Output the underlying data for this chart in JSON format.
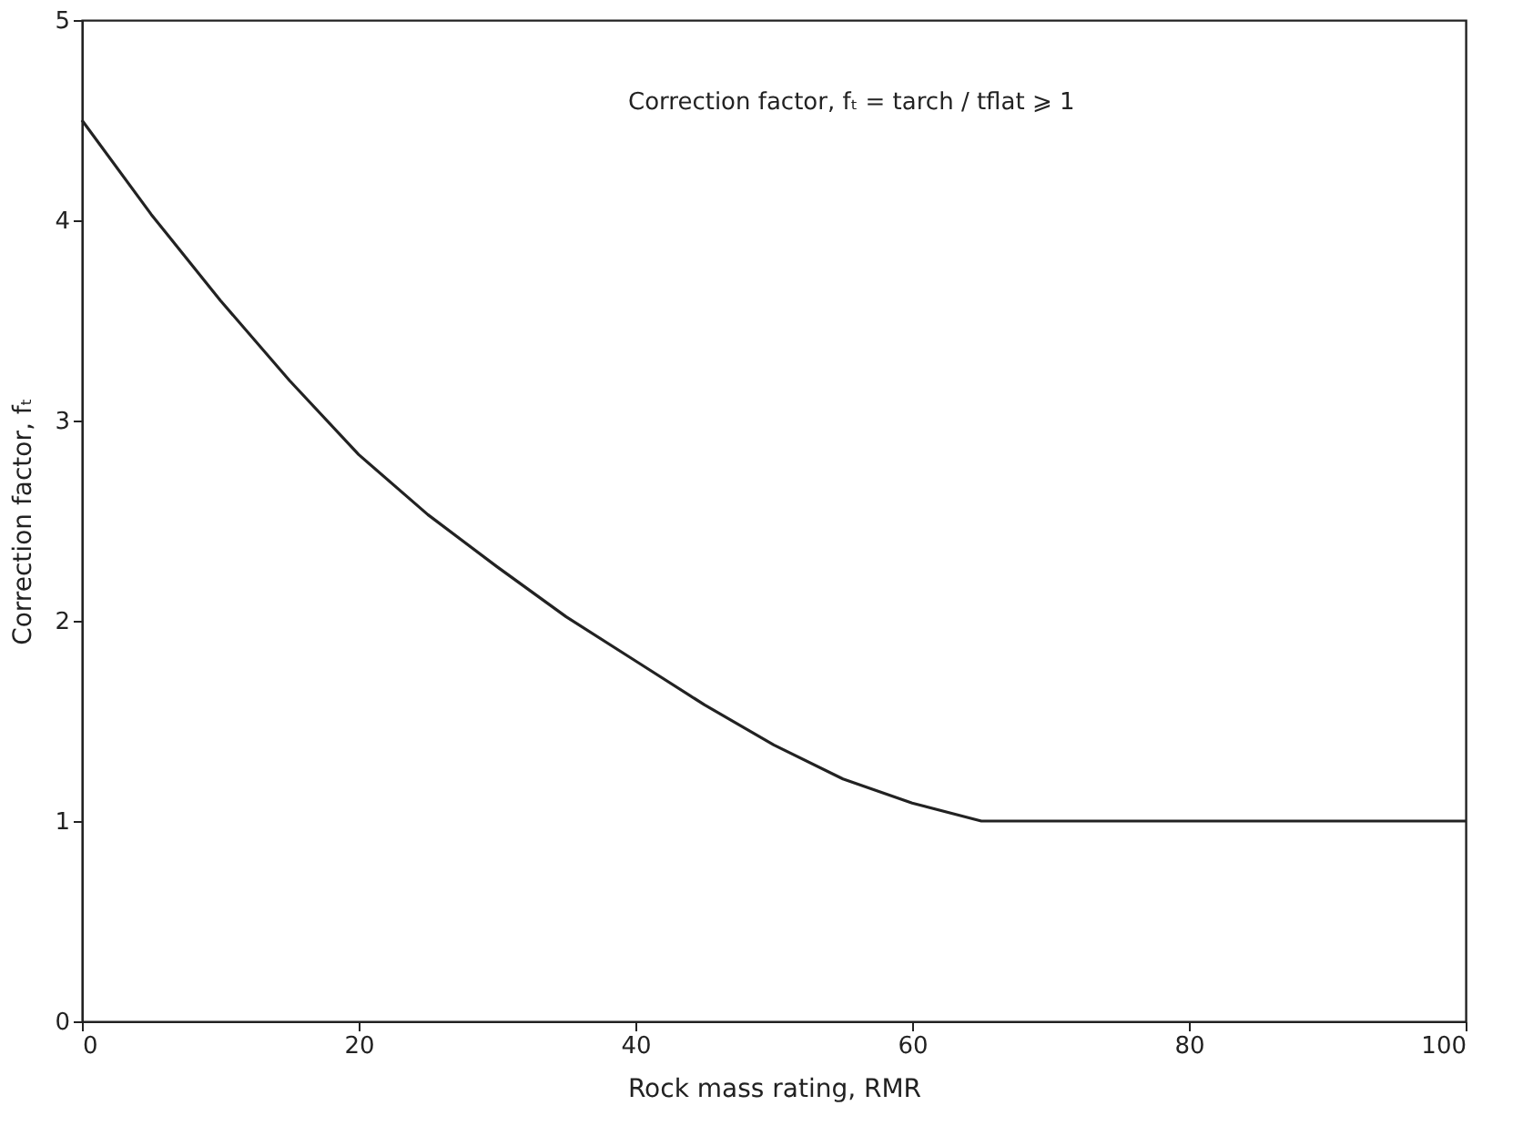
{
  "chart_data": {
    "type": "line",
    "xlabel": "Rock mass rating, RMR",
    "ylabel": "Correction factor, fₜ",
    "annotations": [
      "Correction factor, fₜ = tarch / tflat ⩾ 1"
    ],
    "series": [
      {
        "color": "#222222",
        "x": [
          0,
          5,
          10,
          15,
          20,
          25,
          30,
          35,
          40,
          45,
          50,
          55,
          60,
          65,
          100
        ],
        "values": [
          4.5,
          4.03,
          3.6,
          3.2,
          2.83,
          2.53,
          2.27,
          2.02,
          1.8,
          1.58,
          1.38,
          1.21,
          1.09,
          1.0,
          1.0
        ]
      }
    ],
    "xlim": [
      0,
      100
    ],
    "xticks": [
      0,
      20,
      40,
      60,
      80,
      100
    ],
    "ylim": [
      0,
      5
    ],
    "yticks": [
      0,
      1,
      2,
      3,
      4,
      5
    ],
    "grid": false,
    "marker": "none",
    "line_style": "solid"
  }
}
